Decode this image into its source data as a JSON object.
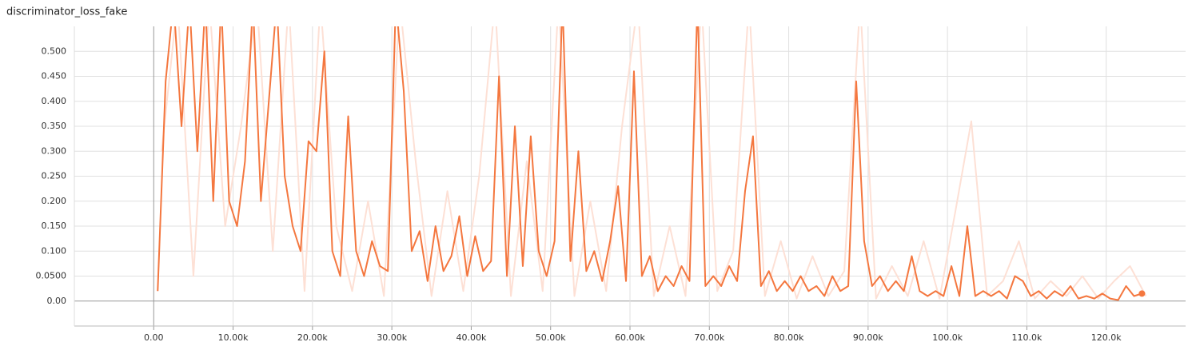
{
  "chart_data": {
    "type": "line",
    "title": "discriminator_loss_fake",
    "xlim": [
      -10000,
      130000
    ],
    "ylim": [
      -0.05,
      0.55
    ],
    "grid": true,
    "xticks": [
      {
        "value": 0,
        "label": "0.00"
      },
      {
        "value": 10000,
        "label": "10.00k"
      },
      {
        "value": 20000,
        "label": "20.00k"
      },
      {
        "value": 30000,
        "label": "30.00k"
      },
      {
        "value": 40000,
        "label": "40.00k"
      },
      {
        "value": 50000,
        "label": "50.00k"
      },
      {
        "value": 60000,
        "label": "60.00k"
      },
      {
        "value": 70000,
        "label": "70.00k"
      },
      {
        "value": 80000,
        "label": "80.00k"
      },
      {
        "value": 90000,
        "label": "90.00k"
      },
      {
        "value": 100000,
        "label": "100.0k"
      },
      {
        "value": 110000,
        "label": "110.0k"
      },
      {
        "value": 120000,
        "label": "120.0k"
      }
    ],
    "yticks": [
      {
        "value": 0,
        "label": "0.00"
      },
      {
        "value": 0.05,
        "label": "0.0500"
      },
      {
        "value": 0.1,
        "label": "0.100"
      },
      {
        "value": 0.15,
        "label": "0.150"
      },
      {
        "value": 0.2,
        "label": "0.200"
      },
      {
        "value": 0.25,
        "label": "0.250"
      },
      {
        "value": 0.3,
        "label": "0.300"
      },
      {
        "value": 0.35,
        "label": "0.350"
      },
      {
        "value": 0.4,
        "label": "0.400"
      },
      {
        "value": 0.45,
        "label": "0.450"
      },
      {
        "value": 0.5,
        "label": "0.500"
      }
    ],
    "series": [
      {
        "color": "#fde0d5",
        "width": 2,
        "x": [
          1000,
          3000,
          5000,
          7000,
          9000,
          11000,
          13000,
          15000,
          17000,
          19000,
          21000,
          23000,
          25000,
          27000,
          29000,
          31000,
          33000,
          35000,
          37000,
          39000,
          41000,
          43000,
          45000,
          47000,
          49000,
          51000,
          53000,
          55000,
          57000,
          59000,
          61000,
          63000,
          65000,
          67000,
          69000,
          71000,
          73000,
          75000,
          77000,
          79000,
          81000,
          83000,
          85000,
          87000,
          89000,
          91000,
          93000,
          95000,
          97000,
          99000,
          101000,
          103000,
          105000,
          107000,
          109000,
          111000,
          113000,
          115000,
          117000,
          119000,
          121000,
          123000,
          125000
        ],
        "values": [
          0.3,
          0.6,
          0.05,
          0.6,
          0.15,
          0.35,
          0.6,
          0.1,
          0.6,
          0.02,
          0.6,
          0.15,
          0.02,
          0.2,
          0.01,
          0.6,
          0.28,
          0.01,
          0.22,
          0.02,
          0.25,
          0.6,
          0.01,
          0.28,
          0.02,
          0.6,
          0.01,
          0.2,
          0.02,
          0.35,
          0.6,
          0.01,
          0.15,
          0.01,
          0.6,
          0.02,
          0.1,
          0.6,
          0.01,
          0.12,
          0.005,
          0.09,
          0.01,
          0.06,
          0.6,
          0.005,
          0.07,
          0.01,
          0.12,
          0.005,
          0.18,
          0.36,
          0.01,
          0.04,
          0.12,
          0.005,
          0.04,
          0.01,
          0.05,
          0.005,
          0.04,
          0.07,
          0.01
        ]
      },
      {
        "color": "#f4773f",
        "width": 2,
        "end_dot": true,
        "x": [
          500,
          1500,
          2500,
          3500,
          4500,
          5500,
          6500,
          7500,
          8500,
          9500,
          10500,
          11500,
          12500,
          13500,
          14500,
          15500,
          16500,
          17500,
          18500,
          19500,
          20500,
          21500,
          22500,
          23500,
          24500,
          25500,
          26500,
          27500,
          28500,
          29500,
          30500,
          31500,
          32500,
          33500,
          34500,
          35500,
          36500,
          37500,
          38500,
          39500,
          40500,
          41500,
          42500,
          43500,
          44500,
          45500,
          46500,
          47500,
          48500,
          49500,
          50500,
          51500,
          52500,
          53500,
          54500,
          55500,
          56500,
          57500,
          58500,
          59500,
          60500,
          61500,
          62500,
          63500,
          64500,
          65500,
          66500,
          67500,
          68500,
          69500,
          70500,
          71500,
          72500,
          73500,
          74500,
          75500,
          76500,
          77500,
          78500,
          79500,
          80500,
          81500,
          82500,
          83500,
          84500,
          85500,
          86500,
          87500,
          88500,
          89500,
          90500,
          91500,
          92500,
          93500,
          94500,
          95500,
          96500,
          97500,
          98500,
          99500,
          100500,
          101500,
          102500,
          103500,
          104500,
          105500,
          106500,
          107500,
          108500,
          109500,
          110500,
          111500,
          112500,
          113500,
          114500,
          115500,
          116500,
          117500,
          118500,
          119500,
          120500,
          121500,
          122500,
          123500,
          124500
        ],
        "values": [
          0.02,
          0.44,
          0.6,
          0.35,
          0.6,
          0.3,
          0.6,
          0.2,
          0.6,
          0.2,
          0.15,
          0.28,
          0.6,
          0.2,
          0.4,
          0.6,
          0.25,
          0.15,
          0.1,
          0.32,
          0.3,
          0.5,
          0.1,
          0.05,
          0.37,
          0.1,
          0.05,
          0.12,
          0.07,
          0.06,
          0.6,
          0.42,
          0.1,
          0.14,
          0.04,
          0.15,
          0.06,
          0.09,
          0.17,
          0.05,
          0.13,
          0.06,
          0.08,
          0.45,
          0.05,
          0.35,
          0.07,
          0.33,
          0.1,
          0.05,
          0.12,
          0.6,
          0.08,
          0.3,
          0.06,
          0.1,
          0.04,
          0.12,
          0.23,
          0.04,
          0.46,
          0.05,
          0.09,
          0.02,
          0.05,
          0.03,
          0.07,
          0.04,
          0.6,
          0.03,
          0.05,
          0.03,
          0.07,
          0.04,
          0.22,
          0.33,
          0.03,
          0.06,
          0.02,
          0.04,
          0.02,
          0.05,
          0.02,
          0.03,
          0.01,
          0.05,
          0.02,
          0.03,
          0.44,
          0.12,
          0.03,
          0.05,
          0.02,
          0.04,
          0.02,
          0.09,
          0.02,
          0.01,
          0.02,
          0.01,
          0.07,
          0.01,
          0.15,
          0.01,
          0.02,
          0.01,
          0.02,
          0.005,
          0.05,
          0.04,
          0.01,
          0.02,
          0.005,
          0.02,
          0.01,
          0.03,
          0.005,
          0.01,
          0.005,
          0.015,
          0.005,
          0.002,
          0.03,
          0.01,
          0.015
        ]
      }
    ]
  }
}
